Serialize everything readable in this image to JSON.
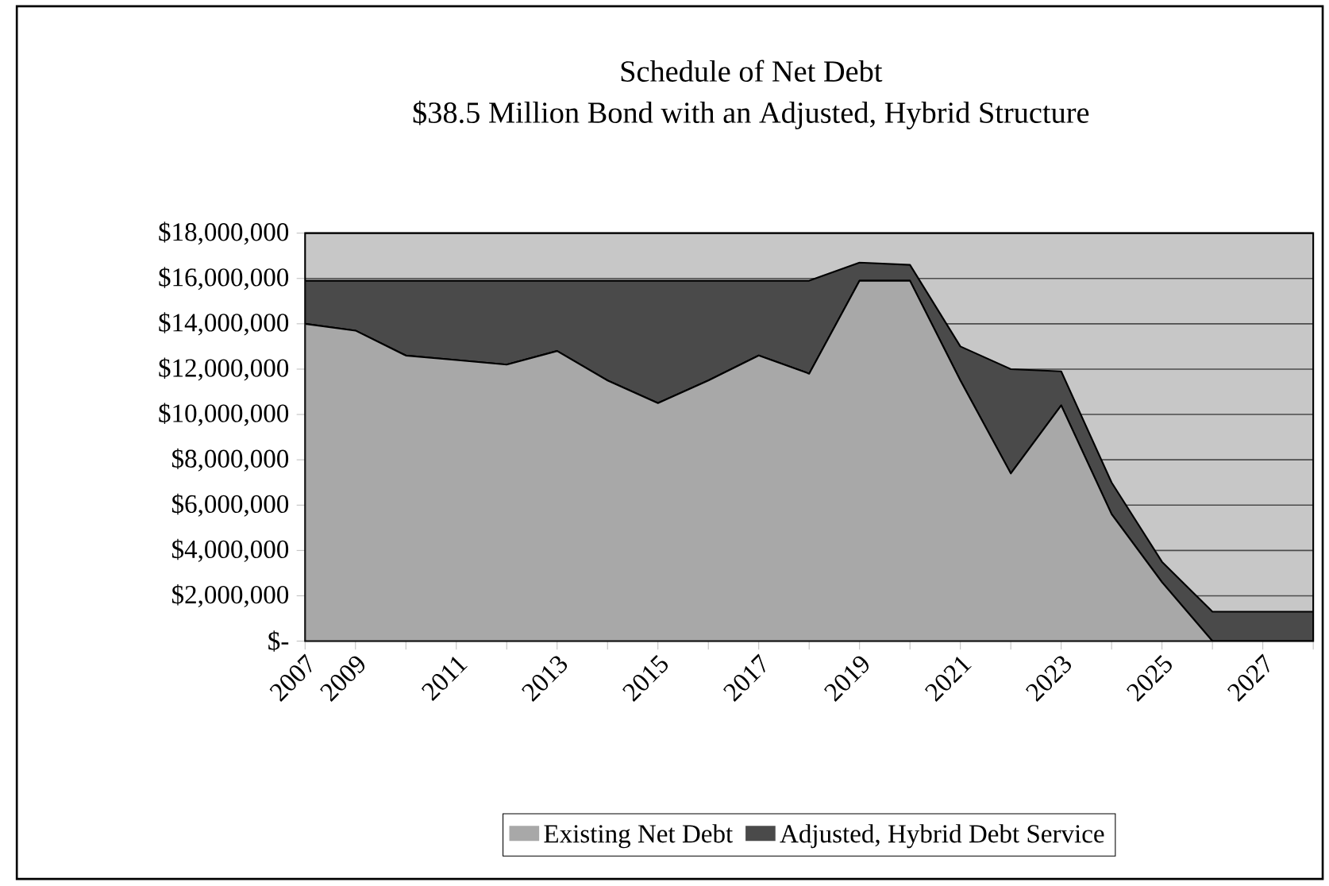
{
  "chart_data": {
    "type": "area",
    "stacked": true,
    "title": "Schedule of Net Debt",
    "subtitle": "$38.5 Million Bond with an Adjusted, Hybrid Structure",
    "categories": [
      "2007",
      "2009",
      null,
      "2011",
      null,
      "2013",
      null,
      "2015",
      null,
      "2017",
      null,
      "2019",
      null,
      "2021",
      null,
      "2023",
      null,
      "2025",
      null,
      "2027",
      null
    ],
    "series": [
      {
        "name": "Existing Net Debt",
        "color": "#a8a8a8",
        "values": [
          14000000,
          13700000,
          12600000,
          12400000,
          12200000,
          12800000,
          11500000,
          10500000,
          11500000,
          12600000,
          11800000,
          15900000,
          15900000,
          11500000,
          7400000,
          10400000,
          5600000,
          2600000,
          0,
          0,
          0
        ]
      },
      {
        "name": "Adjusted, Hybrid Debt Service",
        "color": "#4a4a4a",
        "values": [
          1900000,
          2200000,
          3300000,
          3500000,
          3700000,
          3100000,
          4400000,
          5400000,
          4400000,
          3300000,
          4100000,
          800000,
          700000,
          1500000,
          4600000,
          1500000,
          1400000,
          900000,
          1300000,
          1300000,
          1300000
        ]
      }
    ],
    "ylim": [
      0,
      18000000
    ],
    "yticks": [
      {
        "value": 0,
        "label": "$-"
      },
      {
        "value": 2000000,
        "label": "$2,000,000"
      },
      {
        "value": 4000000,
        "label": "$4,000,000"
      },
      {
        "value": 6000000,
        "label": "$6,000,000"
      },
      {
        "value": 8000000,
        "label": "$8,000,000"
      },
      {
        "value": 10000000,
        "label": "$10,000,000"
      },
      {
        "value": 12000000,
        "label": "$12,000,000"
      },
      {
        "value": 14000000,
        "label": "$14,000,000"
      },
      {
        "value": 16000000,
        "label": "$16,000,000"
      },
      {
        "value": 18000000,
        "label": "$18,000,000"
      }
    ],
    "grid": "y",
    "legend": "bottom"
  }
}
